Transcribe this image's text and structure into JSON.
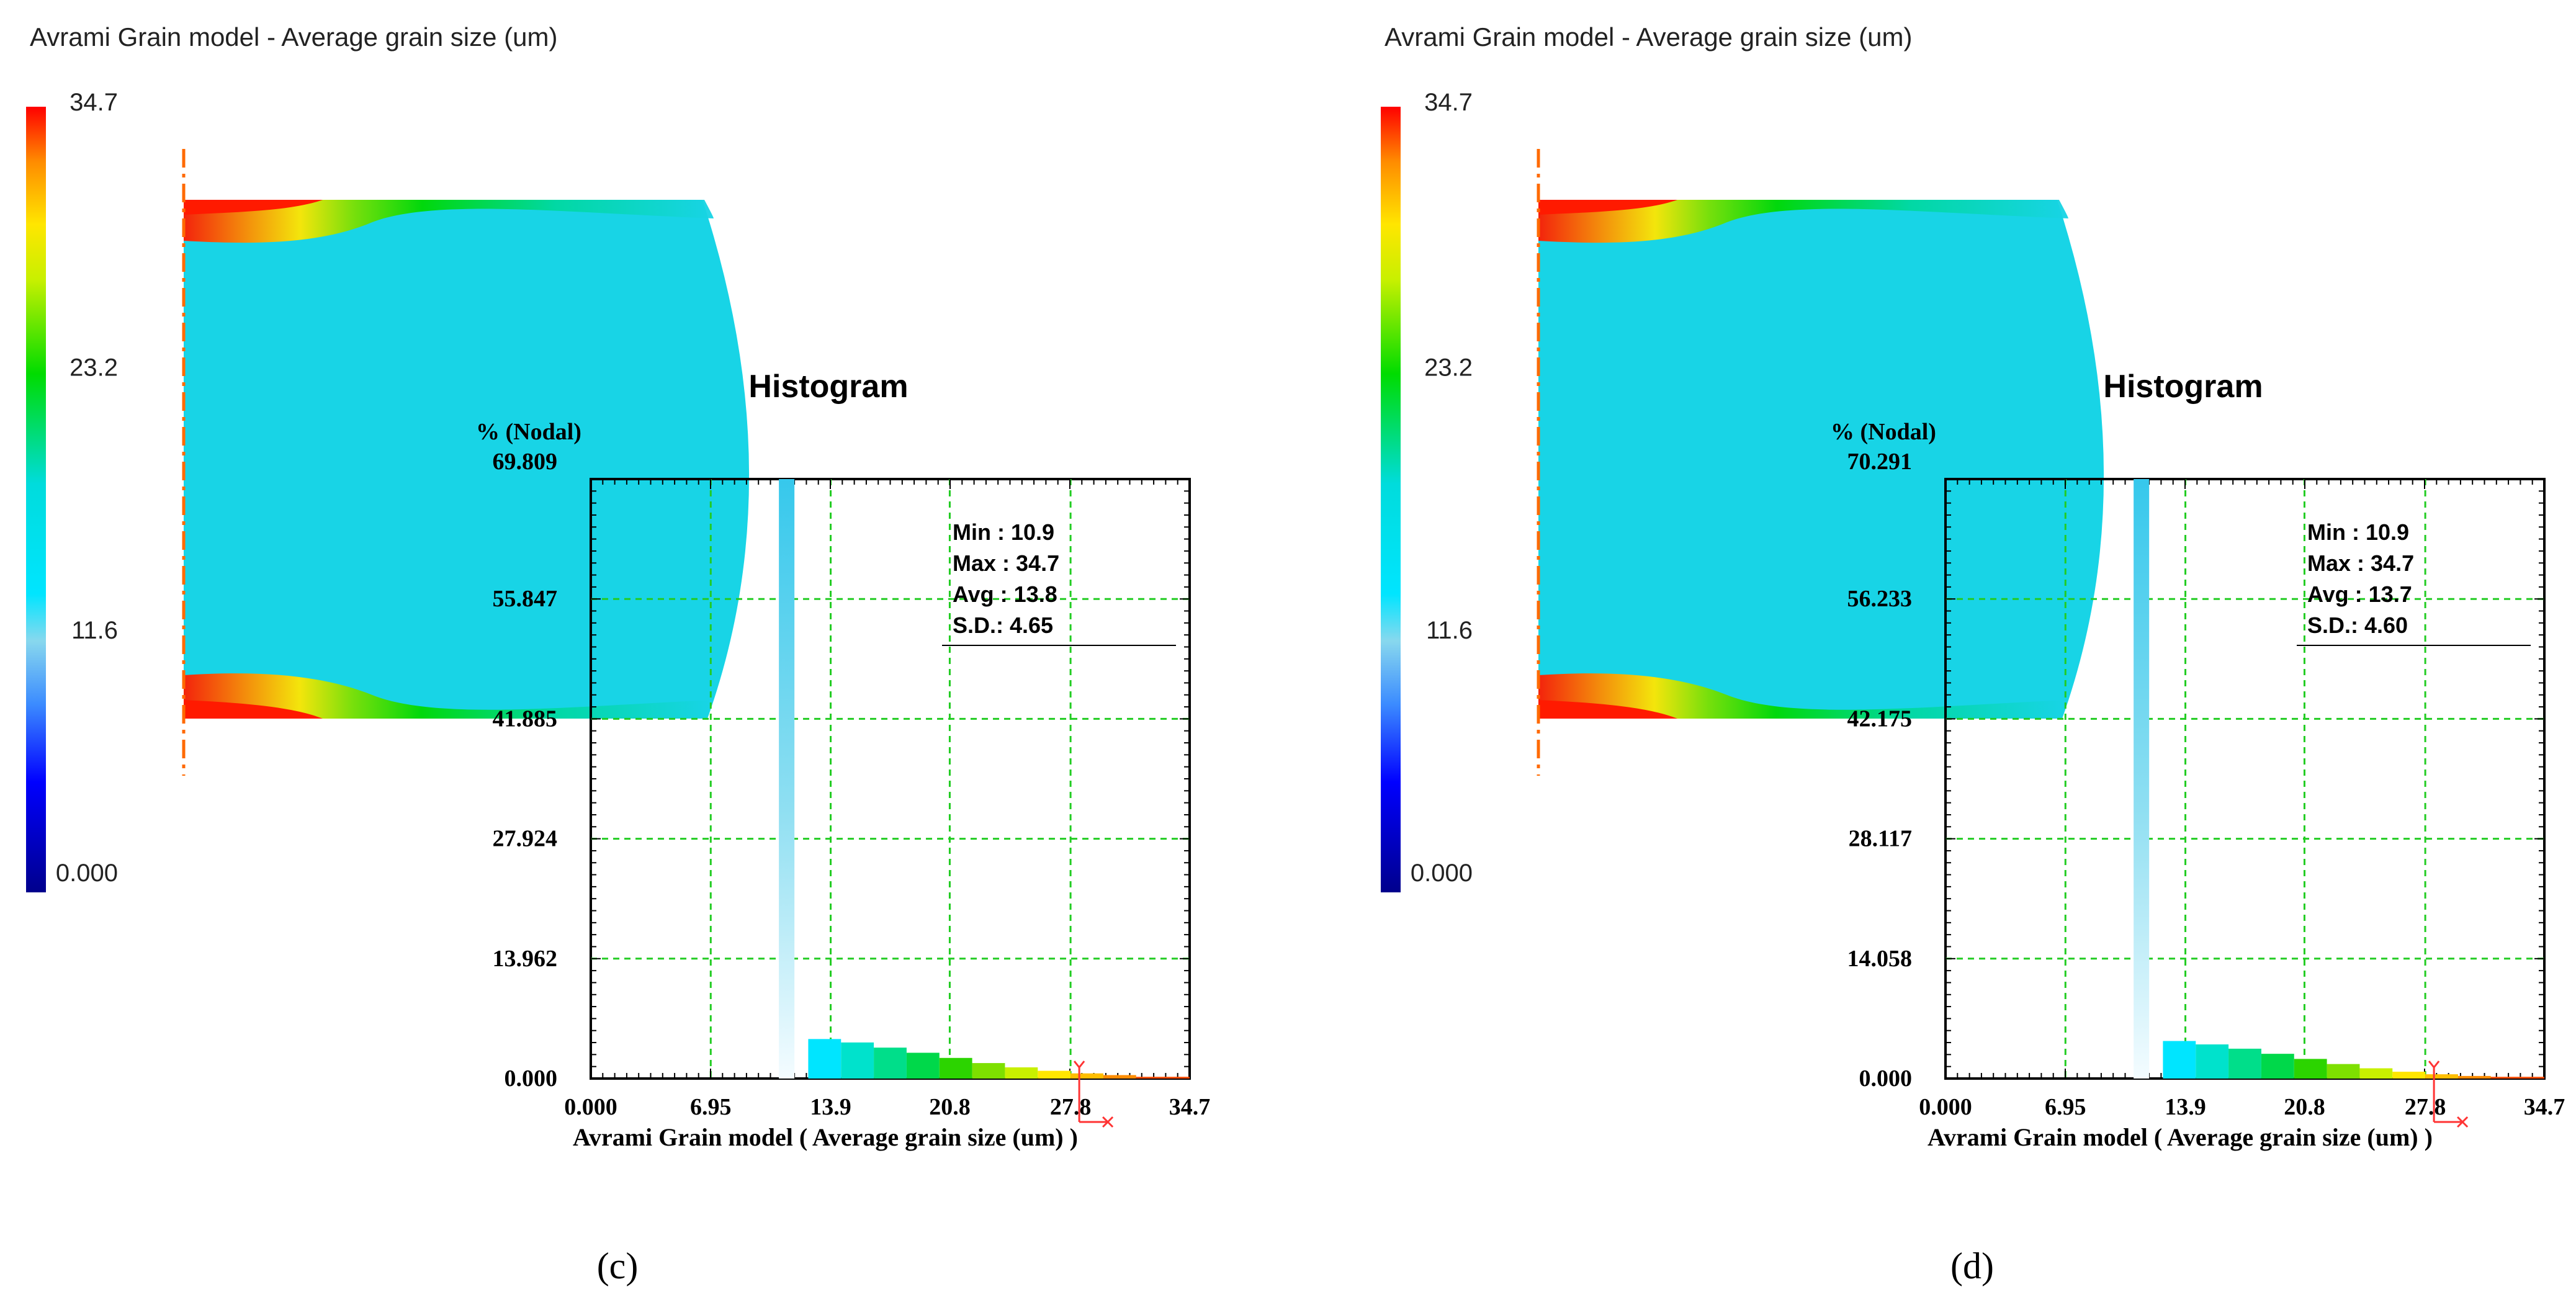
{
  "panels": [
    {
      "caption": "(c)",
      "window_title": "Avrami Grain model - Average grain size (um)",
      "legend": {
        "ticks": [
          "34.7",
          "23.2",
          "11.6",
          "0.000"
        ],
        "tick_values": [
          34.7,
          23.2,
          11.6,
          0.0
        ],
        "range": [
          0.0,
          34.7
        ]
      },
      "chart_data": {
        "type": "bar",
        "title": "Histogram",
        "xlabel": "Avrami Grain model ( Average grain size (um) )",
        "ylabel": "% (Nodal)",
        "x_ticks": [
          "0.000",
          "6.95",
          "13.9",
          "20.8",
          "27.8",
          "34.7"
        ],
        "y_ticks": [
          "0.000",
          "13.962",
          "27.924",
          "41.885",
          "55.847",
          "69.809"
        ],
        "xlim": [
          0.0,
          34.7
        ],
        "ylim": [
          0.0,
          69.809
        ],
        "bins": [
          {
            "x0": 10.9,
            "x1": 11.8,
            "value": 69.809
          },
          {
            "x0": 12.6,
            "x1": 14.5,
            "value": 4.6
          },
          {
            "x0": 14.5,
            "x1": 16.4,
            "value": 4.2
          },
          {
            "x0": 16.4,
            "x1": 18.3,
            "value": 3.6
          },
          {
            "x0": 18.3,
            "x1": 20.2,
            "value": 3.0
          },
          {
            "x0": 20.2,
            "x1": 22.1,
            "value": 2.4
          },
          {
            "x0": 22.1,
            "x1": 24.0,
            "value": 1.8
          },
          {
            "x0": 24.0,
            "x1": 25.9,
            "value": 1.3
          },
          {
            "x0": 25.9,
            "x1": 27.8,
            "value": 0.9
          },
          {
            "x0": 27.8,
            "x1": 29.7,
            "value": 0.6
          },
          {
            "x0": 29.7,
            "x1": 31.6,
            "value": 0.4
          },
          {
            "x0": 31.6,
            "x1": 34.7,
            "value": 0.2
          }
        ],
        "stats": {
          "min": "Min : 10.9",
          "max": "Max : 34.7",
          "avg": "Avg : 13.8",
          "sd": "S.D.: 4.65"
        },
        "grid": true
      }
    },
    {
      "caption": "(d)",
      "window_title": "Avrami Grain model - Average grain size (um)",
      "legend": {
        "ticks": [
          "34.7",
          "23.2",
          "11.6",
          "0.000"
        ],
        "tick_values": [
          34.7,
          23.2,
          11.6,
          0.0
        ],
        "range": [
          0.0,
          34.7
        ]
      },
      "chart_data": {
        "type": "bar",
        "title": "Histogram",
        "xlabel": "Avrami Grain model ( Average grain size (um) )",
        "ylabel": "% (Nodal)",
        "x_ticks": [
          "0.000",
          "6.95",
          "13.9",
          "20.8",
          "27.8",
          "34.7"
        ],
        "y_ticks": [
          "0.000",
          "14.058",
          "28.117",
          "42.175",
          "56.233",
          "70.291"
        ],
        "xlim": [
          0.0,
          34.7
        ],
        "ylim": [
          0.0,
          70.291
        ],
        "bins": [
          {
            "x0": 10.9,
            "x1": 11.8,
            "value": 70.291
          },
          {
            "x0": 12.6,
            "x1": 14.5,
            "value": 4.4
          },
          {
            "x0": 14.5,
            "x1": 16.4,
            "value": 4.0
          },
          {
            "x0": 16.4,
            "x1": 18.3,
            "value": 3.5
          },
          {
            "x0": 18.3,
            "x1": 20.2,
            "value": 2.9
          },
          {
            "x0": 20.2,
            "x1": 22.1,
            "value": 2.3
          },
          {
            "x0": 22.1,
            "x1": 24.0,
            "value": 1.7
          },
          {
            "x0": 24.0,
            "x1": 25.9,
            "value": 1.2
          },
          {
            "x0": 25.9,
            "x1": 27.8,
            "value": 0.8
          },
          {
            "x0": 27.8,
            "x1": 29.7,
            "value": 0.5
          },
          {
            "x0": 29.7,
            "x1": 31.6,
            "value": 0.3
          },
          {
            "x0": 31.6,
            "x1": 34.7,
            "value": 0.2
          }
        ],
        "stats": {
          "min": "Min : 10.9",
          "max": "Max : 34.7",
          "avg": "Avg : 13.7",
          "sd": "S.D.: 4.60"
        },
        "grid": true
      }
    }
  ],
  "colors": {
    "background": "#ffffff",
    "part_fill": "#18d4e6",
    "grid": "#22cc22",
    "axis": "#000000",
    "symmetry_line": "#ff6a00",
    "cursor_marker": "#ff3333",
    "scale": [
      "#00008c",
      "#0000ff",
      "#3c8cff",
      "#00e5ff",
      "#00dc00",
      "#c8f000",
      "#ffe600",
      "#ff8c00",
      "#ff0000"
    ]
  }
}
